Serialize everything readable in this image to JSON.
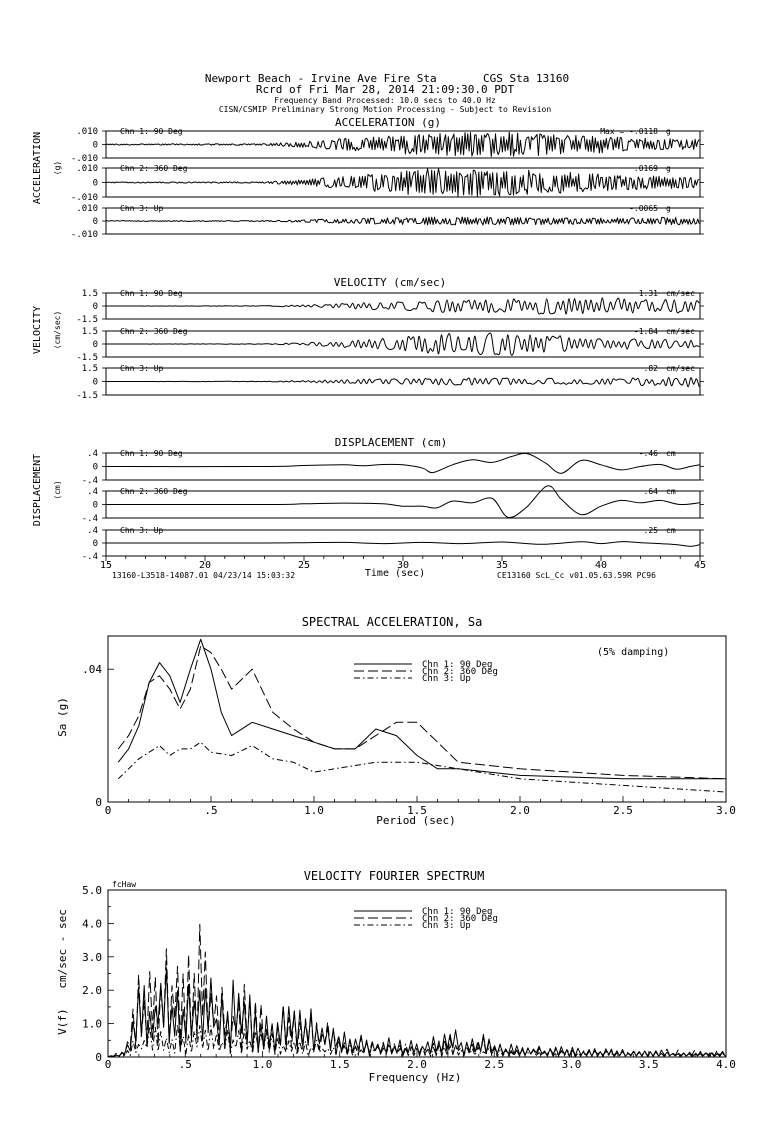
{
  "header": {
    "line1": "Newport Beach - Irvine Ave Fire Sta       CGS Sta 13160",
    "line2": "Rcrd of Fri Mar 28, 2014 21:09:30.0 PDT",
    "line3": "Frequency Band Processed: 10.0 secs to 40.0 Hz",
    "line4": "CISN/CSMIP Preliminary Strong Motion Processing - Subject to Revision"
  },
  "time_axis": {
    "xlabel": "Time (sec)",
    "xlim": [
      15,
      45
    ],
    "ticks": [
      "15",
      "20",
      "25",
      "30",
      "35",
      "40",
      "45"
    ],
    "footer_left": "13160-L3518-14087.01 04/23/14 15:03:32",
    "footer_right": "CE13160  ScL_Cc  v01.05.63.59R PC96"
  },
  "colors": {
    "ink": "#000000",
    "background": "#ffffff"
  },
  "chart_data": [
    {
      "type": "line",
      "title": "ACCELERATION (g)",
      "ylabel": "ACCELERATION",
      "yunit": "(g)",
      "x_range": [
        15,
        45
      ],
      "channels": [
        {
          "name": "Chn 1: 90 Deg",
          "peak": "Max =   -.0118",
          "unit": "g",
          "ylim": [
            -0.01,
            0.01
          ],
          "yticks": [
            ".010",
            "0",
            "-.010"
          ],
          "peak_value": -0.0118,
          "envelope": {
            "t": [
              15,
              23,
              25,
              27,
              29,
              31,
              33,
              35,
              37,
              39,
              41,
              43,
              45
            ],
            "amp": [
              0.0004,
              0.0006,
              0.0022,
              0.0045,
              0.0062,
              0.0078,
              0.0088,
              0.0095,
              0.0085,
              0.007,
              0.0055,
              0.0045,
              0.004
            ]
          }
        },
        {
          "name": "Chn 2: 360 Deg",
          "peak": ".0169",
          "unit": "g",
          "ylim": [
            -0.01,
            0.01
          ],
          "yticks": [
            ".010",
            "0",
            "-.010"
          ],
          "peak_value": 0.0169,
          "envelope": {
            "t": [
              15,
              23,
              25,
              27,
              29,
              31,
              33,
              35,
              37,
              39,
              41,
              43,
              45
            ],
            "amp": [
              0.0003,
              0.0005,
              0.002,
              0.0042,
              0.007,
              0.0095,
              0.0105,
              0.0095,
              0.008,
              0.0065,
              0.0052,
              0.0045,
              0.004
            ]
          }
        },
        {
          "name": "Chn 3: Up",
          "peak": "-.0065",
          "unit": "g",
          "ylim": [
            -0.01,
            0.01
          ],
          "yticks": [
            ".010",
            "0",
            "-.010"
          ],
          "peak_value": -0.0065,
          "envelope": {
            "t": [
              15,
              23,
              25,
              27,
              29,
              31,
              33,
              35,
              37,
              39,
              41,
              43,
              45
            ],
            "amp": [
              0.0003,
              0.0004,
              0.001,
              0.0018,
              0.0026,
              0.003,
              0.0032,
              0.003,
              0.0028,
              0.0026,
              0.0024,
              0.003,
              0.0025
            ]
          }
        }
      ]
    },
    {
      "type": "line",
      "title": "VELOCITY (cm/sec)",
      "ylabel": "VELOCITY",
      "yunit": "(cm/sec)",
      "x_range": [
        15,
        45
      ],
      "channels": [
        {
          "name": "Chn 1: 90 Deg",
          "peak": "1.31",
          "unit": "cm/sec",
          "ylim": [
            -1.5,
            1.5
          ],
          "yticks": [
            "1.5",
            "0",
            "-1.5"
          ],
          "peak_value": 1.31,
          "envelope": {
            "t": [
              15,
              23,
              25,
              27,
              29,
              31,
              33,
              35,
              37,
              39,
              41,
              43,
              45
            ],
            "amp": [
              0.0,
              0.03,
              0.12,
              0.3,
              0.5,
              0.7,
              0.75,
              0.85,
              0.9,
              1.0,
              0.9,
              0.7,
              0.8
            ]
          }
        },
        {
          "name": "Chn 2: 360 Deg",
          "peak": "-1.84",
          "unit": "cm/sec",
          "ylim": [
            -1.5,
            1.5
          ],
          "yticks": [
            "1.5",
            "0",
            "-1.5"
          ],
          "peak_value": -1.84,
          "envelope": {
            "t": [
              15,
              23,
              25,
              27,
              29,
              31,
              33,
              35,
              37,
              39,
              41,
              43,
              45
            ],
            "amp": [
              0.0,
              0.03,
              0.15,
              0.4,
              0.6,
              1.0,
              1.4,
              1.2,
              1.0,
              0.8,
              0.6,
              0.5,
              0.5
            ]
          }
        },
        {
          "name": "Chn 3: Up",
          "peak": ".82",
          "unit": "cm/sec",
          "ylim": [
            -1.5,
            1.5
          ],
          "yticks": [
            "1.5",
            "0",
            "-1.5"
          ],
          "peak_value": 0.82,
          "envelope": {
            "t": [
              15,
              23,
              25,
              27,
              29,
              31,
              33,
              35,
              37,
              39,
              41,
              43,
              45
            ],
            "amp": [
              0.0,
              0.03,
              0.1,
              0.25,
              0.35,
              0.35,
              0.4,
              0.35,
              0.35,
              0.3,
              0.35,
              0.5,
              0.7
            ]
          }
        }
      ]
    },
    {
      "type": "line",
      "title": "DISPLACEMENT (cm)",
      "ylabel": "DISPLACEMENT",
      "yunit": "(cm)",
      "x_range": [
        15,
        45
      ],
      "channels": [
        {
          "name": "Chn 1: 90 Deg",
          "peak": "-.46",
          "unit": "cm",
          "ylim": [
            -0.4,
            0.4
          ],
          "yticks": [
            ".4",
            "0",
            "-.4"
          ],
          "peak_value": -0.46,
          "points": {
            "t": [
              15,
              23,
              25,
              27,
              28,
              29,
              30,
              31,
              31.5,
              32.5,
              33.5,
              34.5,
              35.5,
              36.3,
              37.2,
              38,
              39,
              40,
              41,
              42,
              43,
              43.8,
              44.5,
              45
            ],
            "y": [
              0,
              0,
              0.03,
              0.05,
              0.02,
              0.06,
              0.05,
              -0.05,
              -0.18,
              0.05,
              0.2,
              0.12,
              0.3,
              0.38,
              0.1,
              -0.2,
              0.18,
              0.05,
              -0.1,
              0.0,
              0.06,
              -0.08,
              0.0,
              0.05
            ]
          }
        },
        {
          "name": "Chn 2: 360 Deg",
          "peak": ".64",
          "unit": "cm",
          "ylim": [
            -0.4,
            0.4
          ],
          "yticks": [
            ".4",
            "0",
            "-.4"
          ],
          "peak_value": 0.64,
          "points": {
            "t": [
              15,
              23,
              25,
              27,
              29,
              30,
              31,
              31.7,
              32.5,
              33.5,
              34.5,
              35.3,
              36.2,
              37.3,
              38,
              39,
              40,
              41,
              42,
              43,
              44,
              45
            ],
            "y": [
              0,
              0,
              0.02,
              0.04,
              0.02,
              -0.05,
              -0.05,
              -0.1,
              0.1,
              0.05,
              0.18,
              -0.38,
              -0.1,
              0.55,
              0.15,
              -0.3,
              -0.05,
              0.12,
              0.05,
              0.12,
              0.0,
              0.05
            ]
          }
        },
        {
          "name": "Chn 3: Up",
          "peak": ".25",
          "unit": "cm",
          "ylim": [
            -0.4,
            0.4
          ],
          "yticks": [
            ".4",
            "0",
            "-.4"
          ],
          "peak_value": 0.25,
          "points": {
            "t": [
              15,
              23,
              25,
              27,
              29,
              31,
              33,
              35,
              37,
              39,
              40,
              41,
              42,
              43,
              43.8,
              44.5,
              45
            ],
            "y": [
              0,
              0,
              0.01,
              0.02,
              -0.02,
              0.02,
              -0.02,
              0.03,
              -0.04,
              0.04,
              -0.02,
              0.04,
              0.01,
              -0.02,
              -0.05,
              -0.1,
              -0.05
            ]
          }
        }
      ]
    },
    {
      "type": "line",
      "title": "SPECTRAL ACCELERATION, Sa",
      "annotation": "(5% damping)",
      "xlabel": "Period (sec)",
      "ylabel": "Sa (g)",
      "xlim": [
        0,
        3.0
      ],
      "ylim": [
        0,
        0.05
      ],
      "xticks": [
        "0",
        ".5",
        "1.0",
        "1.5",
        "2.0",
        "2.5",
        "3.0"
      ],
      "yticks": [
        "0",
        ".04"
      ],
      "legend_position": "top-center",
      "series": [
        {
          "name": "Chn 1: 90 Deg",
          "dash": "solid",
          "x": [
            0.05,
            0.1,
            0.15,
            0.2,
            0.25,
            0.3,
            0.35,
            0.4,
            0.45,
            0.5,
            0.55,
            0.6,
            0.7,
            0.8,
            0.9,
            1.0,
            1.1,
            1.2,
            1.3,
            1.4,
            1.5,
            1.6,
            1.7,
            2.0,
            2.5,
            3.0
          ],
          "y": [
            0.012,
            0.016,
            0.023,
            0.036,
            0.042,
            0.038,
            0.03,
            0.04,
            0.049,
            0.04,
            0.027,
            0.02,
            0.024,
            0.022,
            0.02,
            0.018,
            0.016,
            0.016,
            0.022,
            0.02,
            0.014,
            0.01,
            0.01,
            0.008,
            0.007,
            0.007
          ]
        },
        {
          "name": "Chn 2: 360 Deg",
          "dash": "long-dash",
          "x": [
            0.05,
            0.1,
            0.15,
            0.2,
            0.25,
            0.3,
            0.35,
            0.4,
            0.45,
            0.5,
            0.55,
            0.6,
            0.7,
            0.8,
            0.9,
            1.0,
            1.1,
            1.2,
            1.3,
            1.4,
            1.5,
            1.6,
            1.7,
            2.0,
            2.5,
            3.0
          ],
          "y": [
            0.016,
            0.02,
            0.026,
            0.036,
            0.038,
            0.034,
            0.028,
            0.034,
            0.047,
            0.045,
            0.04,
            0.034,
            0.04,
            0.027,
            0.022,
            0.018,
            0.016,
            0.016,
            0.02,
            0.024,
            0.024,
            0.018,
            0.012,
            0.01,
            0.008,
            0.007
          ]
        },
        {
          "name": "Chn 3: Up",
          "dash": "dash-dot",
          "x": [
            0.05,
            0.1,
            0.15,
            0.2,
            0.25,
            0.3,
            0.35,
            0.4,
            0.45,
            0.5,
            0.6,
            0.7,
            0.8,
            0.9,
            1.0,
            1.1,
            1.2,
            1.3,
            1.5,
            1.7,
            2.0,
            2.5,
            3.0
          ],
          "y": [
            0.007,
            0.01,
            0.013,
            0.015,
            0.017,
            0.014,
            0.016,
            0.016,
            0.018,
            0.015,
            0.014,
            0.017,
            0.013,
            0.012,
            0.009,
            0.01,
            0.011,
            0.012,
            0.012,
            0.01,
            0.007,
            0.005,
            0.003
          ]
        }
      ]
    },
    {
      "type": "line",
      "title": "VELOCITY FOURIER SPECTRUM",
      "annotation": "fcHaw",
      "xlabel": "Frequency (Hz)",
      "ylabel": "V(f)   cm/sec - sec",
      "xlim": [
        0,
        4.0
      ],
      "ylim": [
        0,
        5.0
      ],
      "xticks": [
        "0",
        ".5",
        "1.0",
        "1.5",
        "2.0",
        "2.5",
        "3.0",
        "3.5",
        "4.0"
      ],
      "yticks": [
        "0",
        "1.0",
        "2.0",
        "3.0",
        "4.0",
        "5.0"
      ],
      "legend_position": "top-center",
      "series": [
        {
          "name": "Chn 1: 90 Deg",
          "dash": "solid",
          "envelope": {
            "f": [
              0,
              0.1,
              0.15,
              0.2,
              0.3,
              0.4,
              0.5,
              0.6,
              0.7,
              0.8,
              0.9,
              1.0,
              1.2,
              1.4,
              1.6,
              1.8,
              2.0,
              2.2,
              2.35,
              2.5,
              3.0,
              3.5,
              4.0
            ],
            "amp": [
              0,
              0.2,
              1.2,
              2.3,
              3.2,
              2.6,
              2.4,
              2.8,
              2.5,
              2.6,
              2.3,
              1.9,
              1.8,
              1.5,
              0.8,
              0.6,
              0.5,
              0.8,
              1.0,
              0.5,
              0.3,
              0.2,
              0.15
            ]
          }
        },
        {
          "name": "Chn 2: 360 Deg",
          "dash": "long-dash",
          "envelope": {
            "f": [
              0,
              0.1,
              0.15,
              0.25,
              0.3,
              0.4,
              0.5,
              0.6,
              0.7,
              0.8,
              0.9,
              1.0,
              1.2,
              1.4,
              1.6,
              1.8,
              2.0,
              2.2,
              2.4,
              2.6,
              3.0,
              3.5,
              4.0
            ],
            "amp": [
              0,
              0.3,
              1.5,
              3.8,
              3.4,
              3.5,
              2.8,
              4.1,
              3.2,
              2.4,
              2.2,
              1.7,
              1.5,
              1.3,
              0.7,
              0.5,
              0.4,
              0.6,
              0.6,
              0.3,
              0.3,
              0.25,
              0.2
            ]
          }
        },
        {
          "name": "Chn 3: Up",
          "dash": "dash-dot",
          "envelope": {
            "f": [
              0,
              0.1,
              0.2,
              0.3,
              0.4,
              0.5,
              0.6,
              0.7,
              0.8,
              1.0,
              1.2,
              1.5,
              2.0,
              2.5,
              3.0,
              3.5,
              4.0
            ],
            "amp": [
              0,
              0.2,
              0.8,
              1.2,
              1.0,
              1.0,
              1.2,
              1.0,
              0.9,
              0.8,
              0.6,
              0.5,
              0.4,
              0.3,
              0.2,
              0.2,
              0.15
            ]
          }
        }
      ]
    }
  ]
}
